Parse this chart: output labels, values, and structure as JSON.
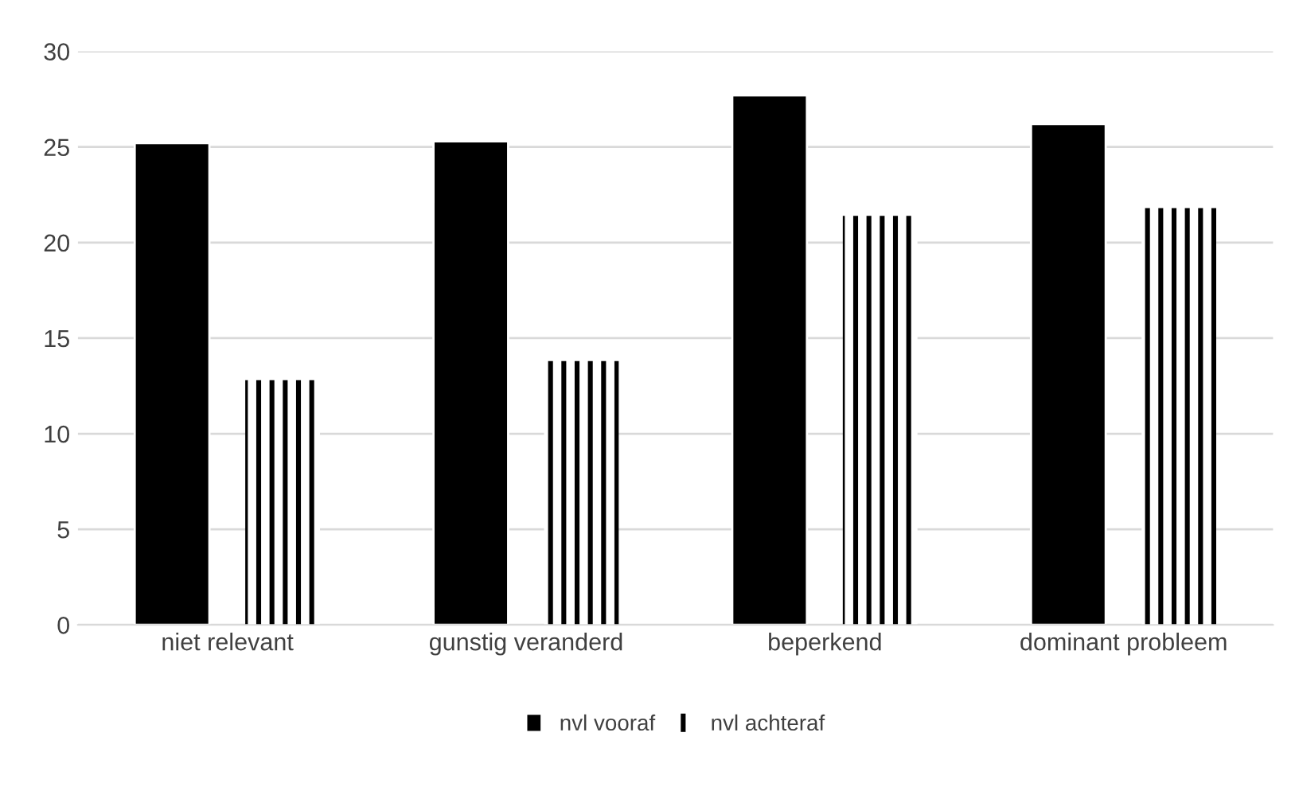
{
  "chart_data": {
    "type": "bar",
    "categories": [
      "niet relevant",
      "gunstig veranderd",
      "beperkend",
      "dominant probleem"
    ],
    "series": [
      {
        "name": "nvl vooraf",
        "color": "#000000",
        "values": [
          25.2,
          25.3,
          27.7,
          26.2
        ]
      },
      {
        "name": "nvl achteraf",
        "color": "#000000",
        "values": [
          12.8,
          13.8,
          21.4,
          21.8
        ]
      }
    ],
    "ylim": [
      0,
      30
    ],
    "yticks": [
      0,
      5,
      10,
      15,
      20,
      25,
      30
    ],
    "grid": "y",
    "legend": "bottom"
  }
}
